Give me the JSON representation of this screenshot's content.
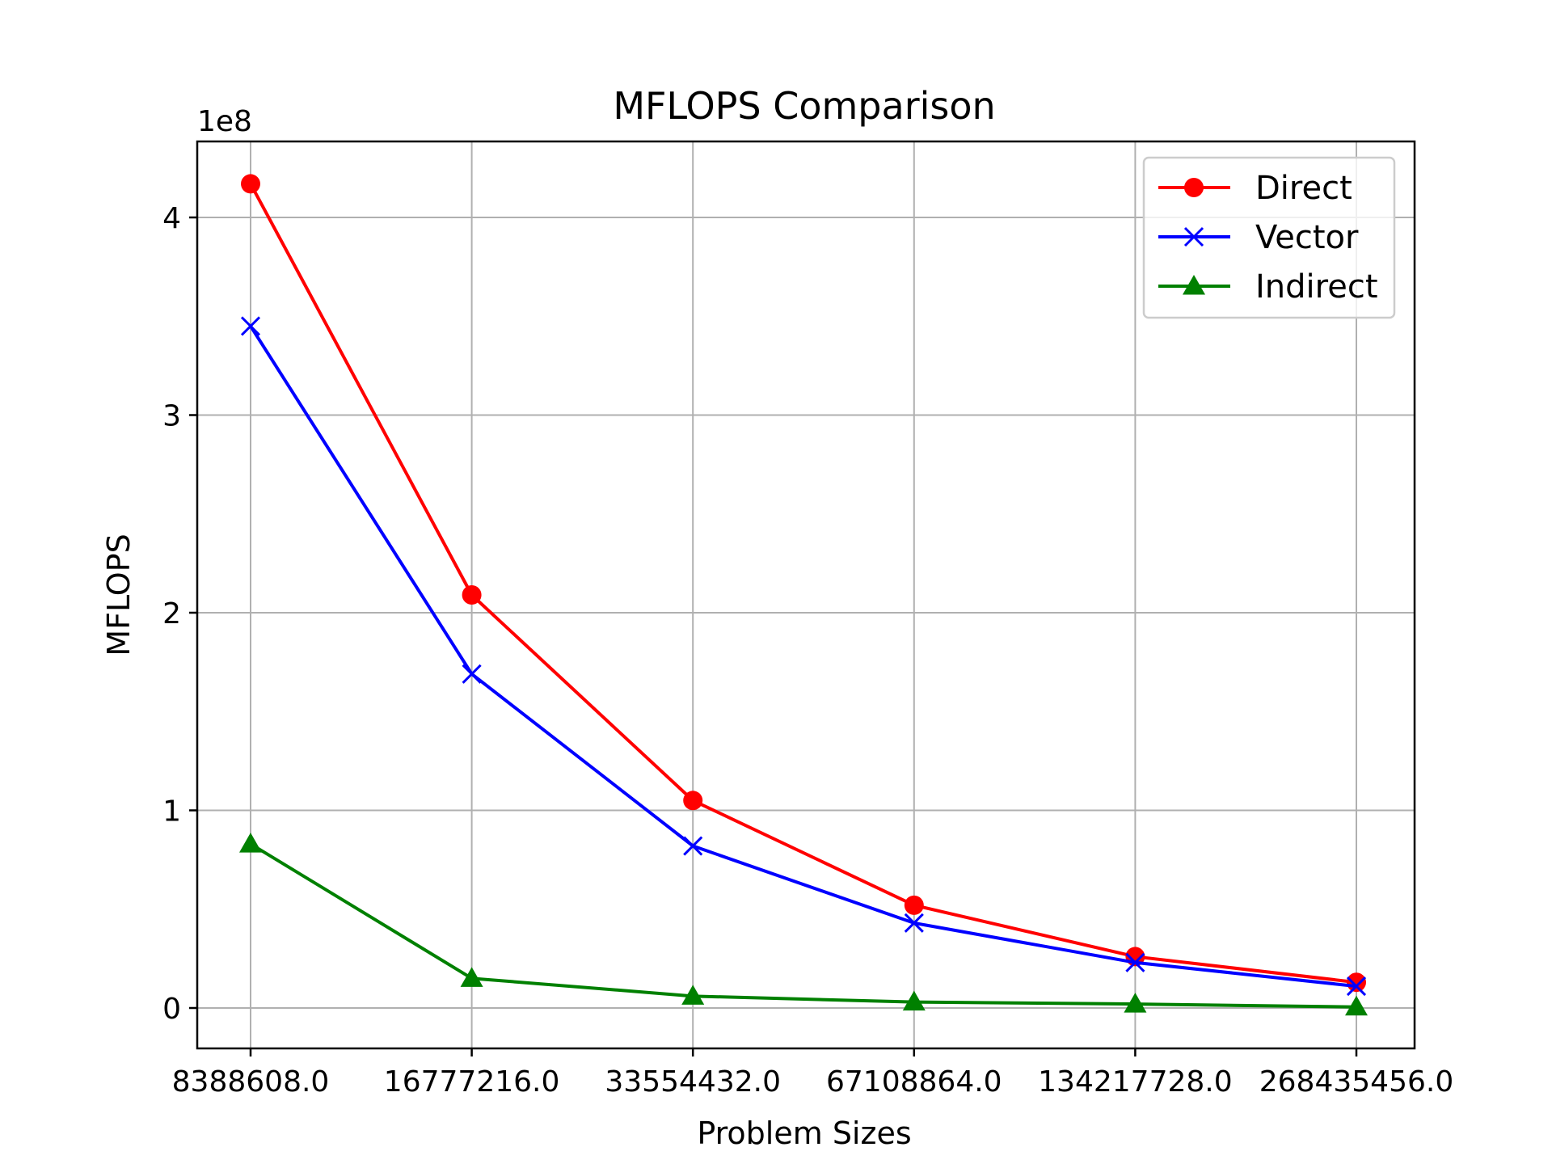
{
  "chart_data": {
    "type": "line",
    "title": "MFLOPS Comparison",
    "xlabel": "Problem Sizes",
    "ylabel": "MFLOPS",
    "y_offset_text": "1e8",
    "categories": [
      "8388608.0",
      "16777216.0",
      "33554432.0",
      "67108864.0",
      "134217728.0",
      "268435456.0"
    ],
    "ylim": [
      -0.2,
      4.38
    ],
    "y_ticks": [
      "0",
      "1",
      "2",
      "3",
      "4"
    ],
    "grid": true,
    "legend_position": "top-right",
    "series": [
      {
        "name": "Direct",
        "color": "#ff0000",
        "marker": "circle",
        "values": [
          4.17,
          2.09,
          1.05,
          0.52,
          0.26,
          0.13
        ]
      },
      {
        "name": "Vector",
        "color": "#0000ff",
        "marker": "x",
        "values": [
          3.45,
          1.69,
          0.82,
          0.43,
          0.23,
          0.11
        ]
      },
      {
        "name": "Indirect",
        "color": "#008000",
        "marker": "triangle",
        "values": [
          0.83,
          0.15,
          0.06,
          0.03,
          0.02,
          0.005
        ]
      }
    ]
  }
}
